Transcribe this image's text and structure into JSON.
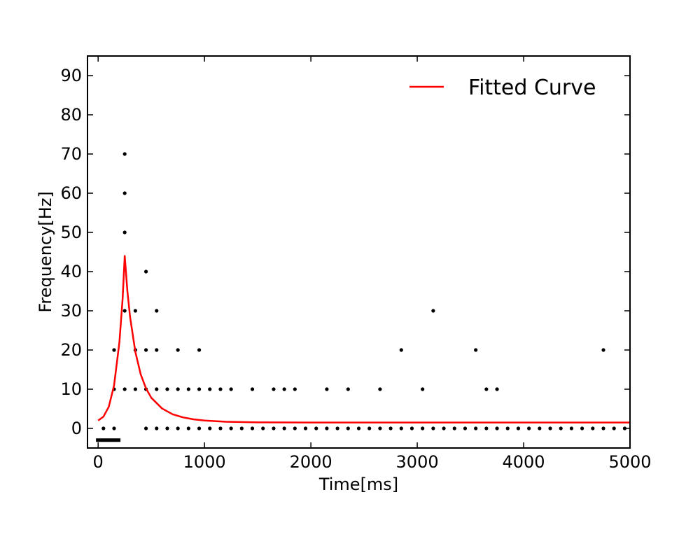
{
  "chart_data": {
    "type": "scatter",
    "title": "",
    "xlabel": "Time[ms]",
    "ylabel": "Frequency[Hz]",
    "xlim": [
      -100,
      5000
    ],
    "ylim": [
      -5,
      95
    ],
    "xticks": [
      0,
      1000,
      2000,
      3000,
      4000,
      5000
    ],
    "yticks": [
      0,
      10,
      20,
      30,
      40,
      50,
      60,
      70,
      80,
      90
    ],
    "grid": false,
    "legend": {
      "position": "top-right",
      "entries": [
        "Fitted Curve"
      ]
    },
    "colors": {
      "points": "#000000",
      "curve": "#ff0000",
      "bar": "#000000"
    },
    "stimulus_bar": {
      "x_start": -20,
      "x_end": 210,
      "y": -3
    },
    "series": [
      {
        "kind": "points",
        "points": [
          [
            50,
            0
          ],
          [
            150,
            0
          ],
          [
            150,
            10
          ],
          [
            150,
            20
          ],
          [
            250,
            10
          ],
          [
            250,
            30
          ],
          [
            250,
            50
          ],
          [
            250,
            60
          ],
          [
            250,
            70
          ],
          [
            350,
            10
          ],
          [
            350,
            20
          ],
          [
            350,
            30
          ],
          [
            450,
            0
          ],
          [
            450,
            10
          ],
          [
            450,
            20
          ],
          [
            450,
            40
          ],
          [
            550,
            0
          ],
          [
            550,
            10
          ],
          [
            550,
            20
          ],
          [
            550,
            30
          ],
          [
            650,
            0
          ],
          [
            650,
            10
          ],
          [
            750,
            0
          ],
          [
            750,
            10
          ],
          [
            750,
            20
          ],
          [
            850,
            0
          ],
          [
            850,
            10
          ],
          [
            950,
            0
          ],
          [
            950,
            10
          ],
          [
            950,
            20
          ],
          [
            1050,
            0
          ],
          [
            1050,
            10
          ],
          [
            1150,
            0
          ],
          [
            1150,
            10
          ],
          [
            1250,
            0
          ],
          [
            1250,
            10
          ],
          [
            1350,
            0
          ],
          [
            1450,
            0
          ],
          [
            1450,
            10
          ],
          [
            1550,
            0
          ],
          [
            1650,
            0
          ],
          [
            1650,
            10
          ],
          [
            1750,
            0
          ],
          [
            1750,
            10
          ],
          [
            1850,
            0
          ],
          [
            1850,
            10
          ],
          [
            1950,
            0
          ],
          [
            2050,
            0
          ],
          [
            2150,
            0
          ],
          [
            2150,
            10
          ],
          [
            2250,
            0
          ],
          [
            2350,
            0
          ],
          [
            2350,
            10
          ],
          [
            2450,
            0
          ],
          [
            2550,
            0
          ],
          [
            2650,
            0
          ],
          [
            2650,
            10
          ],
          [
            2750,
            0
          ],
          [
            2850,
            0
          ],
          [
            2850,
            20
          ],
          [
            2950,
            0
          ],
          [
            3050,
            0
          ],
          [
            3050,
            10
          ],
          [
            3150,
            0
          ],
          [
            3150,
            30
          ],
          [
            3250,
            0
          ],
          [
            3350,
            0
          ],
          [
            3450,
            0
          ],
          [
            3550,
            0
          ],
          [
            3550,
            20
          ],
          [
            3650,
            0
          ],
          [
            3650,
            10
          ],
          [
            3750,
            0
          ],
          [
            3750,
            10
          ],
          [
            3850,
            0
          ],
          [
            3950,
            0
          ],
          [
            4050,
            0
          ],
          [
            4150,
            0
          ],
          [
            4250,
            0
          ],
          [
            4350,
            0
          ],
          [
            4450,
            0
          ],
          [
            4550,
            0
          ],
          [
            4650,
            0
          ],
          [
            4750,
            0
          ],
          [
            4750,
            20
          ],
          [
            4850,
            0
          ],
          [
            4950,
            0
          ]
        ]
      },
      {
        "name": "Fitted Curve",
        "kind": "line",
        "x": [
          0,
          50,
          100,
          150,
          200,
          230,
          250,
          275,
          300,
          350,
          400,
          450,
          500,
          600,
          700,
          800,
          900,
          1000,
          1200,
          1500,
          2000,
          3000,
          4000,
          5000
        ],
        "values": [
          2,
          3,
          5.5,
          11,
          22,
          33,
          44,
          35,
          28.5,
          19.5,
          13.8,
          10.2,
          7.8,
          5.1,
          3.6,
          2.8,
          2.3,
          2.0,
          1.7,
          1.55,
          1.5,
          1.5,
          1.5,
          1.5
        ]
      }
    ]
  }
}
